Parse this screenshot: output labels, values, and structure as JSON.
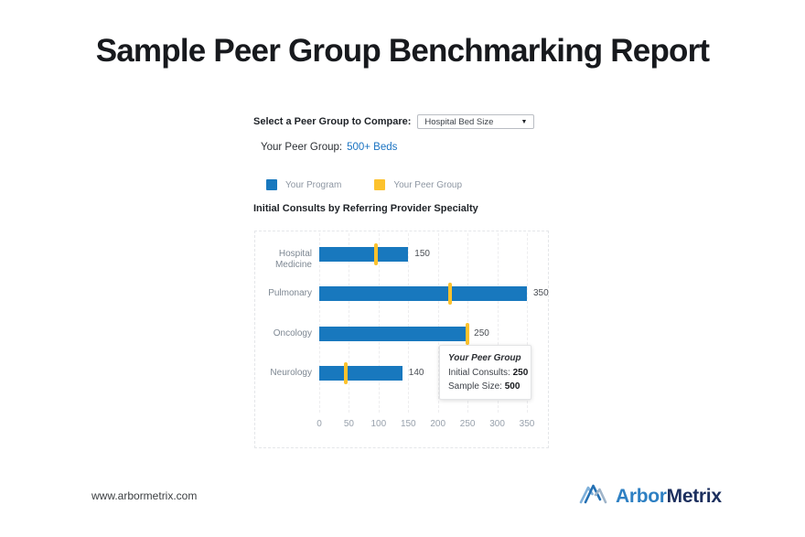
{
  "page": {
    "title": "Sample Peer Group Benchmarking Report"
  },
  "controls": {
    "select_label": "Select a Peer Group to Compare:",
    "select_value": "Hospital Bed Size",
    "select_caret_icon": "chevron-down-icon",
    "peer_group_label": "Your Peer Group:",
    "peer_group_value": "500+ Beds"
  },
  "legend": [
    {
      "label": "Your Program",
      "color": "#1878be"
    },
    {
      "label": "Your Peer Group",
      "color": "#fcc22d"
    }
  ],
  "chart_data": {
    "type": "bar",
    "orientation": "horizontal",
    "title": "Initial Consults by Referring Provider Specialty",
    "categories": [
      "Hospital Medicine",
      "Pulmonary",
      "Oncology",
      "Neurology"
    ],
    "series": [
      {
        "name": "Your Program",
        "values": [
          150,
          350,
          250,
          140
        ],
        "color": "#1878be",
        "style": "bar"
      },
      {
        "name": "Your Peer Group",
        "values": [
          95,
          220,
          250,
          45
        ],
        "color": "#fcc22d",
        "style": "tick-marker"
      }
    ],
    "value_labels": [
      "150",
      "350",
      "250",
      "140"
    ],
    "x_ticks": [
      0,
      50,
      100,
      150,
      200,
      250,
      300,
      350
    ],
    "xlim": [
      0,
      350
    ],
    "grid": "vertical-dashed",
    "legend_position": "above-chart-left"
  },
  "tooltip": {
    "title": "Your Peer Group",
    "rows": [
      {
        "label": "Initial Consults:",
        "value": "250"
      },
      {
        "label": "Sample Size:",
        "value": "500"
      }
    ]
  },
  "footer": {
    "website": "www.arbormetrix.com",
    "logo_icon": "mountain-zigzag-icon",
    "logo_text_primary": "Arbor",
    "logo_text_secondary": "Metrix",
    "logo_color_primary": "#2e80c3",
    "logo_color_secondary": "#1c2f5e"
  }
}
